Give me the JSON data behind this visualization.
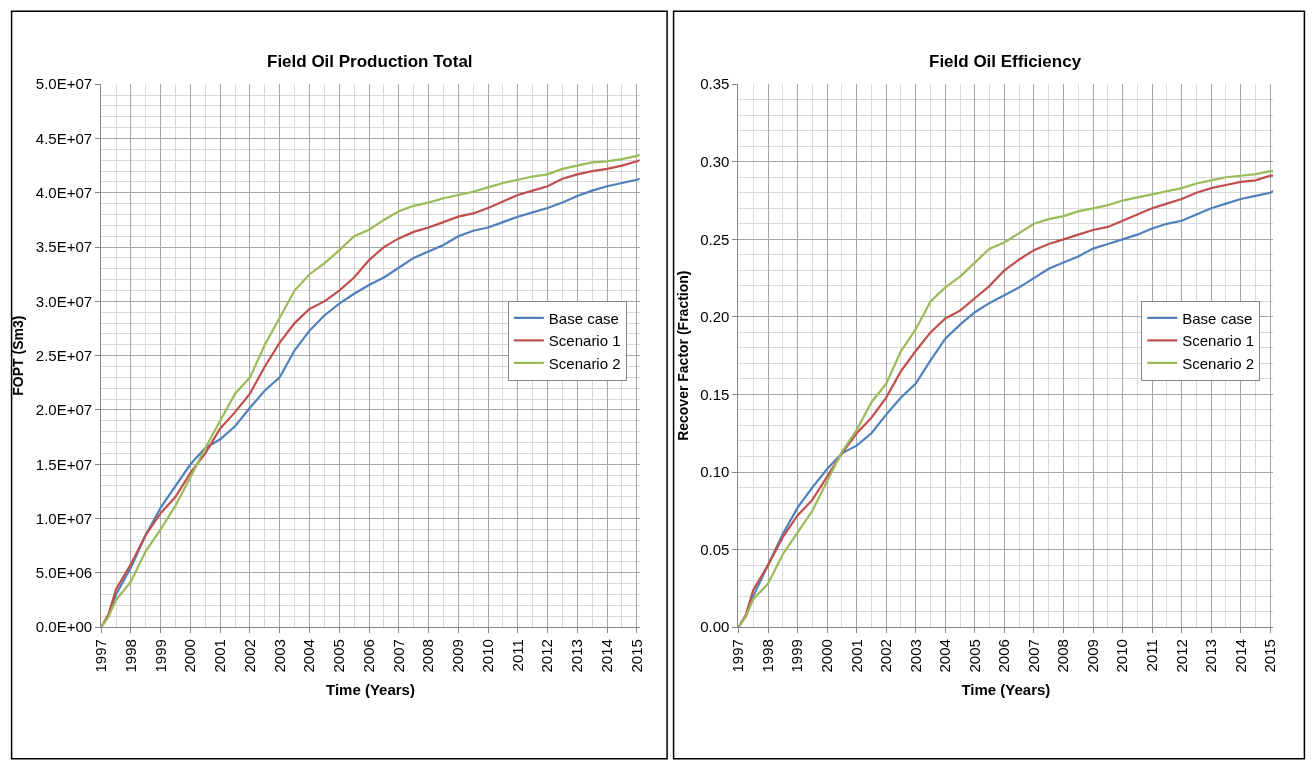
{
  "chart_data": [
    {
      "type": "line",
      "title": "Field Oil Production Total",
      "xlabel": "Time (Years)",
      "ylabel": "FOPT (Sm3)",
      "x": [
        1997,
        1997.25,
        1997.5,
        1998,
        1998.5,
        1999,
        1999.5,
        2000,
        2000.5,
        2001,
        2001.5,
        2002,
        2002.5,
        2003,
        2003.5,
        2004,
        2004.5,
        2005,
        2005.5,
        2006,
        2006.5,
        2007,
        2007.5,
        2008,
        2008.5,
        2009,
        2009.5,
        2010,
        2010.5,
        2011,
        2011.5,
        2012,
        2012.5,
        2013,
        2013.5,
        2014,
        2014.5,
        2015,
        2015.1
      ],
      "series": [
        {
          "name": "Base case",
          "color": "#4f81bd",
          "values": [
            0,
            1000000,
            3000000,
            5500000,
            8500000,
            11000000,
            13000000,
            15000000,
            16500000,
            17300000,
            18500000,
            20200000,
            21800000,
            23000000,
            25500000,
            27300000,
            28700000,
            29800000,
            30700000,
            31500000,
            32200000,
            33100000,
            34000000,
            34600000,
            35200000,
            36000000,
            36500000,
            36800000,
            37300000,
            37800000,
            38200000,
            38600000,
            39100000,
            39700000,
            40200000,
            40600000,
            40900000,
            41200000,
            41300000
          ]
        },
        {
          "name": "Scenario 1",
          "color": "#c0504d",
          "values": [
            0,
            1200000,
            3500000,
            5800000,
            8500000,
            10500000,
            12000000,
            14200000,
            16000000,
            18300000,
            19800000,
            21500000,
            24000000,
            26200000,
            28000000,
            29300000,
            30000000,
            31000000,
            32200000,
            33800000,
            35000000,
            35800000,
            36400000,
            36800000,
            37300000,
            37800000,
            38100000,
            38600000,
            39200000,
            39800000,
            40200000,
            40600000,
            41300000,
            41700000,
            42000000,
            42200000,
            42500000,
            42900000,
            43000000
          ]
        },
        {
          "name": "Scenario 2",
          "color": "#9bbb59",
          "values": [
            0,
            1000000,
            2500000,
            4200000,
            7000000,
            9000000,
            11200000,
            13800000,
            16500000,
            19000000,
            21500000,
            23000000,
            26000000,
            28500000,
            31000000,
            32500000,
            33500000,
            34700000,
            36000000,
            36600000,
            37500000,
            38300000,
            38800000,
            39100000,
            39500000,
            39800000,
            40100000,
            40500000,
            40900000,
            41200000,
            41500000,
            41700000,
            42200000,
            42500000,
            42800000,
            42900000,
            43100000,
            43400000,
            43500000
          ]
        }
      ],
      "xlim": [
        1997,
        2015.1
      ],
      "xticks": [
        1997,
        1998,
        1999,
        2000,
        2001,
        2002,
        2003,
        2004,
        2005,
        2006,
        2007,
        2008,
        2009,
        2010,
        2011,
        2012,
        2013,
        2014,
        2015
      ],
      "ylim": [
        0,
        50000000
      ],
      "yticks": [
        {
          "value": 0,
          "label": "0.0E+00"
        },
        {
          "value": 5000000,
          "label": "5.0E+06"
        },
        {
          "value": 10000000,
          "label": "1.0E+07"
        },
        {
          "value": 15000000,
          "label": "1.5E+07"
        },
        {
          "value": 20000000,
          "label": "2.0E+07"
        },
        {
          "value": 25000000,
          "label": "2.5E+07"
        },
        {
          "value": 30000000,
          "label": "3.0E+07"
        },
        {
          "value": 35000000,
          "label": "3.5E+07"
        },
        {
          "value": 40000000,
          "label": "4.0E+07"
        },
        {
          "value": 45000000,
          "label": "4.5E+07"
        },
        {
          "value": 50000000,
          "label": "5.0E+07"
        }
      ],
      "grid": true,
      "legend": "right",
      "marker": "none",
      "line_style": "solid"
    },
    {
      "type": "line",
      "title": "Field Oil Efficiency",
      "xlabel": "Time (Years)",
      "ylabel": "Recover Factor (Fraction)",
      "x": [
        1997,
        1997.25,
        1997.5,
        1998,
        1998.5,
        1999,
        1999.5,
        2000,
        2000.5,
        2001,
        2001.5,
        2002,
        2002.5,
        2003,
        2003.5,
        2004,
        2004.5,
        2005,
        2005.5,
        2006,
        2006.5,
        2007,
        2007.5,
        2008,
        2008.5,
        2009,
        2009.5,
        2010,
        2010.5,
        2011,
        2011.5,
        2012,
        2012.5,
        2013,
        2013.5,
        2014,
        2014.5,
        2015,
        2015.1
      ],
      "series": [
        {
          "name": "Base case",
          "color": "#4f81bd",
          "values": [
            0,
            0.007,
            0.02,
            0.04,
            0.06,
            0.077,
            0.09,
            0.102,
            0.112,
            0.117,
            0.125,
            0.137,
            0.148,
            0.157,
            0.172,
            0.186,
            0.195,
            0.203,
            0.209,
            0.214,
            0.219,
            0.225,
            0.231,
            0.235,
            0.239,
            0.244,
            0.247,
            0.25,
            0.253,
            0.257,
            0.26,
            0.262,
            0.266,
            0.27,
            0.273,
            0.276,
            0.278,
            0.28,
            0.281
          ]
        },
        {
          "name": "Scenario 1",
          "color": "#c0504d",
          "values": [
            0,
            0.008,
            0.024,
            0.04,
            0.058,
            0.072,
            0.082,
            0.097,
            0.112,
            0.125,
            0.135,
            0.148,
            0.165,
            0.178,
            0.19,
            0.199,
            0.204,
            0.212,
            0.22,
            0.23,
            0.237,
            0.243,
            0.247,
            0.25,
            0.253,
            0.256,
            0.258,
            0.262,
            0.266,
            0.27,
            0.273,
            0.276,
            0.28,
            0.283,
            0.285,
            0.287,
            0.288,
            0.291,
            0.291
          ]
        },
        {
          "name": "Scenario 2",
          "color": "#9bbb59",
          "values": [
            0,
            0.007,
            0.018,
            0.028,
            0.047,
            0.061,
            0.075,
            0.094,
            0.113,
            0.127,
            0.145,
            0.157,
            0.178,
            0.192,
            0.21,
            0.219,
            0.226,
            0.235,
            0.244,
            0.248,
            0.254,
            0.26,
            0.263,
            0.265,
            0.268,
            0.27,
            0.272,
            0.275,
            0.277,
            0.279,
            0.281,
            0.283,
            0.286,
            0.288,
            0.29,
            0.291,
            0.292,
            0.294,
            0.294
          ]
        }
      ],
      "xlim": [
        1997,
        2015.1
      ],
      "xticks": [
        1997,
        1998,
        1999,
        2000,
        2001,
        2002,
        2003,
        2004,
        2005,
        2006,
        2007,
        2008,
        2009,
        2010,
        2011,
        2012,
        2013,
        2014,
        2015
      ],
      "ylim": [
        0,
        0.35
      ],
      "yticks": [
        {
          "value": 0,
          "label": "0.00"
        },
        {
          "value": 0.05,
          "label": "0.05"
        },
        {
          "value": 0.1,
          "label": "0.10"
        },
        {
          "value": 0.15,
          "label": "0.15"
        },
        {
          "value": 0.2,
          "label": "0.20"
        },
        {
          "value": 0.25,
          "label": "0.25"
        },
        {
          "value": 0.3,
          "label": "0.30"
        },
        {
          "value": 0.35,
          "label": "0.35"
        }
      ],
      "grid": true,
      "legend": "right",
      "marker": "none",
      "line_style": "solid"
    }
  ]
}
